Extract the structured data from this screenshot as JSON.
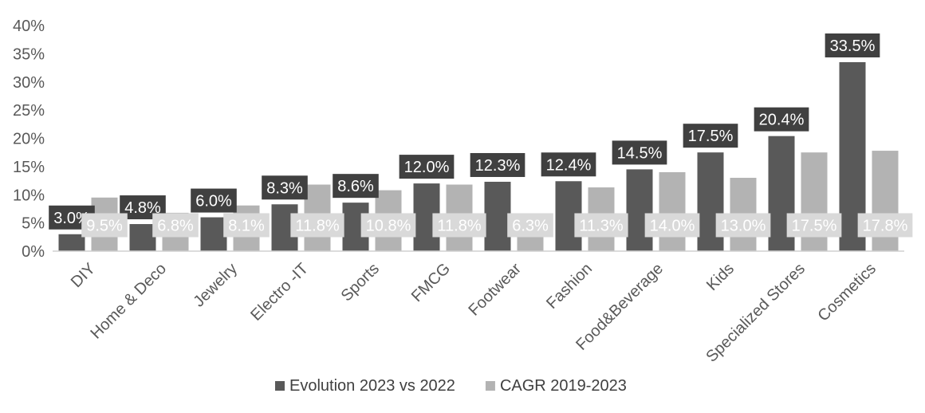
{
  "chart_data": {
    "type": "bar",
    "title": "",
    "xlabel": "",
    "ylabel": "",
    "ylim": [
      0,
      40
    ],
    "yticks": [
      0,
      5,
      10,
      15,
      20,
      25,
      30,
      35,
      40
    ],
    "ytick_labels": [
      "0%",
      "5%",
      "10%",
      "15%",
      "20%",
      "25%",
      "30%",
      "35%",
      "40%"
    ],
    "grid": false,
    "legend_position": "bottom",
    "categories": [
      "DIY",
      "Home & Deco",
      "Jewelry",
      "Electro -IT",
      "Sports",
      "FMCG",
      "Footwear",
      "Fashion",
      "Food&Beverage",
      "Kids",
      "Specialized Stores",
      "Cosmetics"
    ],
    "series": [
      {
        "name": "Evolution 2023 vs 2022",
        "color": "#595959",
        "values": [
          3.0,
          4.8,
          6.0,
          8.3,
          8.6,
          12.0,
          12.3,
          12.4,
          14.5,
          17.5,
          20.4,
          33.5
        ],
        "labels": [
          "3.0%",
          "4.8%",
          "6.0%",
          "8.3%",
          "8.6%",
          "12.0%",
          "12.3%",
          "12.4%",
          "14.5%",
          "17.5%",
          "20.4%",
          "33.5%"
        ]
      },
      {
        "name": "CAGR 2019-2023",
        "color": "#b3b3b3",
        "values": [
          9.5,
          6.8,
          8.1,
          11.8,
          10.8,
          11.8,
          6.3,
          11.3,
          14.0,
          13.0,
          17.5,
          17.8
        ],
        "labels": [
          "9.5%",
          "6.8%",
          "8.1%",
          "11.8%",
          "10.8%",
          "11.8%",
          "6.3%",
          "11.3%",
          "14.0%",
          "13.0%",
          "17.5%",
          "17.8%"
        ]
      }
    ]
  }
}
